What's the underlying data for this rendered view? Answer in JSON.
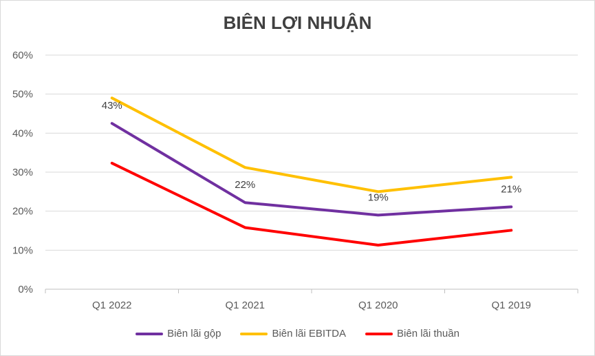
{
  "chart_data": {
    "type": "line",
    "title": "BIÊN LỢI NHUẬN",
    "categories": [
      "Q1 2022",
      "Q1 2021",
      "Q1 2020",
      "Q1 2019"
    ],
    "ylim": [
      0,
      60
    ],
    "yticks": [
      "0%",
      "10%",
      "20%",
      "30%",
      "40%",
      "50%",
      "60%"
    ],
    "yunit": "%",
    "grid": true,
    "legend_position": "bottom",
    "series": [
      {
        "name": "Biên lãi gộp",
        "values": [
          42.5,
          22.2,
          19.0,
          21.1
        ],
        "color": "#7030a0"
      },
      {
        "name": "Biên lãi EBITDA",
        "values": [
          49.0,
          31.2,
          25.0,
          28.7
        ],
        "color": "#ffc000"
      },
      {
        "name": "Biên lãi thuần",
        "values": [
          32.3,
          15.8,
          11.3,
          15.1
        ],
        "color": "#ff0000"
      }
    ],
    "data_labels": [
      "43%",
      "22%",
      "19%",
      "21%"
    ]
  }
}
